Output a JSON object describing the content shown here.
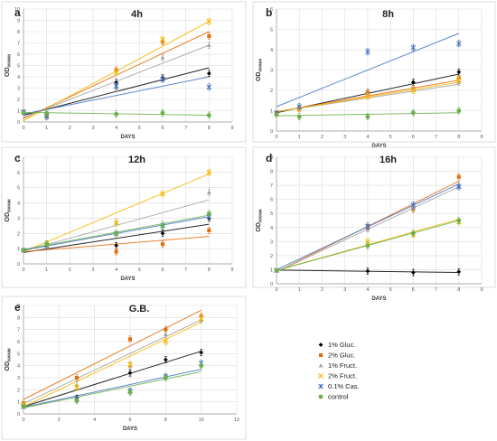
{
  "figure": {
    "series_style": [
      {
        "name": "1% Gluc.",
        "color": "#000000",
        "marker": "diamond"
      },
      {
        "name": "2% Gluc.",
        "color": "#e46c0a",
        "marker": "square"
      },
      {
        "name": "1% Fruct.",
        "color": "#a0a0a0",
        "marker": "triangle"
      },
      {
        "name": "2% Fruct.",
        "color": "#f5b800",
        "marker": "x"
      },
      {
        "name": "0.1% Cas.",
        "color": "#4472c4",
        "marker": "star"
      },
      {
        "name": "control",
        "color": "#6ab04c",
        "marker": "circle"
      }
    ]
  },
  "chart_data": [
    {
      "id": "a",
      "type": "scatter",
      "letter": "a",
      "title": "4h",
      "xlabel": "DAYS",
      "ylabel_main": "OD",
      "ylabel_sub": "600NM",
      "xlim": [
        0,
        9
      ],
      "ylim": [
        0,
        10
      ],
      "xticks": [
        0,
        1,
        2,
        3,
        4,
        5,
        6,
        7,
        8,
        9
      ],
      "yticks": [
        0,
        1,
        2,
        3,
        4,
        5,
        6,
        7,
        8,
        9,
        10
      ],
      "grid": true,
      "series": [
        {
          "name": "1% Gluc.",
          "x": [
            0,
            1,
            4,
            6,
            8
          ],
          "y": [
            0.9,
            0.6,
            3.5,
            3.9,
            4.3
          ]
        },
        {
          "name": "2% Gluc.",
          "x": [
            0,
            1,
            4,
            6,
            8
          ],
          "y": [
            0.9,
            0.6,
            4.6,
            7.1,
            7.6
          ]
        },
        {
          "name": "1% Fruct.",
          "x": [
            0,
            1,
            4,
            6,
            8
          ],
          "y": [
            0.9,
            0.5,
            3.0,
            5.7,
            6.8
          ]
        },
        {
          "name": "2% Fruct.",
          "x": [
            0,
            1,
            4,
            6,
            8
          ],
          "y": [
            0.9,
            0.6,
            4.4,
            7.3,
            8.9
          ]
        },
        {
          "name": "0.1% Cas.",
          "x": [
            0,
            1,
            4,
            6,
            8
          ],
          "y": [
            0.9,
            0.5,
            3.2,
            3.8,
            3.1
          ]
        },
        {
          "name": "control",
          "x": [
            0,
            1,
            4,
            6,
            8
          ],
          "y": [
            0.8,
            0.8,
            0.7,
            0.8,
            0.6
          ]
        }
      ],
      "trend": [
        {
          "name": "1% Gluc.",
          "y0": 0.6,
          "y1": 4.8
        },
        {
          "name": "2% Gluc.",
          "y0": 0.3,
          "y1": 8.0
        },
        {
          "name": "1% Fruct.",
          "y0": 0.4,
          "y1": 6.8
        },
        {
          "name": "2% Fruct.",
          "y0": 0.1,
          "y1": 8.9
        },
        {
          "name": "0.1% Cas.",
          "y0": 0.7,
          "y1": 4.0
        },
        {
          "name": "control",
          "y0": 0.85,
          "y1": 0.6
        }
      ]
    },
    {
      "id": "b",
      "type": "scatter",
      "letter": "b",
      "title": "8h",
      "xlabel": "DAYS",
      "ylabel_main": "OD",
      "ylabel_sub": "600NM",
      "xlim": [
        0,
        9
      ],
      "ylim": [
        0,
        6
      ],
      "xticks": [
        0,
        1,
        2,
        3,
        4,
        5,
        6,
        7,
        8,
        9
      ],
      "yticks": [
        0,
        1,
        2,
        3,
        4,
        5,
        6
      ],
      "grid": true,
      "series": [
        {
          "name": "1% Gluc.",
          "x": [
            0,
            1,
            4,
            6,
            8
          ],
          "y": [
            0.9,
            1.1,
            1.9,
            2.4,
            2.9
          ]
        },
        {
          "name": "2% Gluc.",
          "x": [
            0,
            1,
            4,
            6,
            8
          ],
          "y": [
            0.9,
            1.1,
            1.9,
            2.1,
            2.6
          ]
        },
        {
          "name": "1% Fruct.",
          "x": [
            0,
            1,
            4,
            6,
            8
          ],
          "y": [
            0.9,
            1.1,
            1.8,
            2.1,
            2.4
          ]
        },
        {
          "name": "2% Fruct.",
          "x": [
            0,
            1,
            4,
            6,
            8
          ],
          "y": [
            0.9,
            1.1,
            1.7,
            2.0,
            2.5
          ]
        },
        {
          "name": "0.1% Cas.",
          "x": [
            0,
            1,
            4,
            6,
            8
          ],
          "y": [
            0.9,
            1.2,
            3.9,
            4.1,
            4.3
          ]
        },
        {
          "name": "control",
          "x": [
            0,
            1,
            4,
            6,
            8
          ],
          "y": [
            0.8,
            0.7,
            0.7,
            0.9,
            1.0
          ]
        }
      ],
      "trend": [
        {
          "name": "1% Gluc.",
          "y0": 0.9,
          "y1": 2.8
        },
        {
          "name": "2% Gluc.",
          "y0": 0.95,
          "y1": 2.5
        },
        {
          "name": "1% Fruct.",
          "y0": 0.95,
          "y1": 2.3
        },
        {
          "name": "2% Fruct.",
          "y0": 0.95,
          "y1": 2.4
        },
        {
          "name": "0.1% Cas.",
          "y0": 1.2,
          "y1": 4.8
        },
        {
          "name": "control",
          "y0": 0.75,
          "y1": 0.9
        }
      ]
    },
    {
      "id": "c",
      "type": "scatter",
      "letter": "c",
      "title": "12h",
      "xlabel": "DAYS",
      "ylabel_main": "OD",
      "ylabel_sub": "600NM",
      "xlim": [
        0,
        9
      ],
      "ylim": [
        0,
        7
      ],
      "xticks": [
        0,
        1,
        2,
        3,
        4,
        5,
        6,
        7,
        8,
        9
      ],
      "yticks": [
        0,
        1,
        2,
        3,
        4,
        5,
        6,
        7
      ],
      "grid": true,
      "series": [
        {
          "name": "1% Gluc.",
          "x": [
            0,
            1,
            4,
            6,
            8
          ],
          "y": [
            0.9,
            1.2,
            1.2,
            2.0,
            3.0
          ]
        },
        {
          "name": "2% Gluc.",
          "x": [
            0,
            1,
            4,
            6,
            8
          ],
          "y": [
            0.9,
            1.3,
            0.8,
            1.3,
            2.2
          ]
        },
        {
          "name": "1% Fruct.",
          "x": [
            0,
            1,
            4,
            6,
            8
          ],
          "y": [
            0.9,
            1.3,
            2.7,
            2.6,
            4.7
          ]
        },
        {
          "name": "2% Fruct.",
          "x": [
            0,
            1,
            4,
            6,
            8
          ],
          "y": [
            0.9,
            1.3,
            2.7,
            4.6,
            6.0
          ]
        },
        {
          "name": "0.1% Cas.",
          "x": [
            0,
            1,
            4,
            6,
            8
          ],
          "y": [
            0.9,
            1.2,
            2.0,
            2.5,
            3.1
          ]
        },
        {
          "name": "control",
          "x": [
            0,
            1,
            4,
            6,
            8
          ],
          "y": [
            0.9,
            1.3,
            2.0,
            2.5,
            3.3
          ]
        }
      ],
      "trend": [
        {
          "name": "1% Gluc.",
          "y0": 0.75,
          "y1": 2.6
        },
        {
          "name": "2% Gluc.",
          "y0": 0.8,
          "y1": 1.8
        },
        {
          "name": "1% Fruct.",
          "y0": 0.85,
          "y1": 4.2
        },
        {
          "name": "2% Fruct.",
          "y0": 0.8,
          "y1": 5.9
        },
        {
          "name": "0.1% Cas.",
          "y0": 0.9,
          "y1": 3.1
        },
        {
          "name": "control",
          "y0": 0.95,
          "y1": 3.2
        }
      ]
    },
    {
      "id": "d",
      "type": "scatter",
      "letter": "d",
      "title": "16h",
      "xlabel": "DAYS",
      "ylabel_main": "OD",
      "ylabel_sub": "600NM",
      "xlim": [
        0,
        9
      ],
      "ylim": [
        0,
        9
      ],
      "xticks": [
        0,
        1,
        2,
        3,
        4,
        5,
        6,
        7,
        8,
        9
      ],
      "yticks": [
        0,
        1,
        2,
        3,
        4,
        5,
        6,
        7,
        8,
        9
      ],
      "grid": true,
      "series": [
        {
          "name": "1% Gluc.",
          "x": [
            0,
            4,
            6,
            8
          ],
          "y": [
            0.95,
            0.9,
            0.8,
            0.85
          ]
        },
        {
          "name": "2% Gluc.",
          "x": [
            0,
            4,
            6,
            8
          ],
          "y": [
            0.95,
            4.0,
            5.3,
            7.6
          ]
        },
        {
          "name": "1% Fruct.",
          "x": [
            0,
            4,
            6,
            8
          ],
          "y": [
            0.95,
            3.9,
            5.4,
            7.0
          ]
        },
        {
          "name": "2% Fruct.",
          "x": [
            0,
            4,
            6,
            8
          ],
          "y": [
            0.95,
            3.0,
            3.5,
            4.4
          ]
        },
        {
          "name": "0.1% Cas.",
          "x": [
            0,
            4,
            6,
            8
          ],
          "y": [
            0.95,
            4.1,
            5.6,
            6.9
          ]
        },
        {
          "name": "control",
          "x": [
            0,
            4,
            6,
            8
          ],
          "y": [
            0.95,
            2.7,
            3.6,
            4.5
          ]
        }
      ],
      "trend": [
        {
          "name": "1% Gluc.",
          "y0": 0.97,
          "y1": 0.8
        },
        {
          "name": "2% Gluc.",
          "y0": 0.85,
          "y1": 7.3
        },
        {
          "name": "1% Fruct.",
          "y0": 0.85,
          "y1": 6.9
        },
        {
          "name": "2% Fruct.",
          "y0": 0.95,
          "y1": 4.6
        },
        {
          "name": "0.1% Cas.",
          "y0": 1.0,
          "y1": 7.1
        },
        {
          "name": "control",
          "y0": 0.95,
          "y1": 4.5
        }
      ]
    },
    {
      "id": "e",
      "type": "scatter",
      "letter": "e",
      "title": "G.B.",
      "xlabel": "DAYS",
      "ylabel_main": "OD",
      "ylabel_sub": "600NM",
      "xlim": [
        0,
        12
      ],
      "ylim": [
        0,
        9
      ],
      "xticks": [
        0,
        2,
        4,
        6,
        8,
        10,
        12
      ],
      "yticks": [
        0,
        1,
        2,
        3,
        4,
        5,
        6,
        7,
        8,
        9
      ],
      "grid": true,
      "series": [
        {
          "name": "1% Gluc.",
          "x": [
            0,
            3,
            6,
            8,
            10
          ],
          "y": [
            0.8,
            1.3,
            3.4,
            4.5,
            5.1
          ]
        },
        {
          "name": "2% Gluc.",
          "x": [
            0,
            3,
            6,
            8,
            10
          ],
          "y": [
            0.9,
            3.0,
            6.2,
            7.0,
            8.1
          ]
        },
        {
          "name": "1% Fruct.",
          "x": [
            0,
            3,
            6,
            8,
            10
          ],
          "y": [
            0.8,
            2.4,
            4.0,
            6.6,
            7.8
          ]
        },
        {
          "name": "2% Fruct.",
          "x": [
            0,
            3,
            6,
            8,
            10
          ],
          "y": [
            0.8,
            2.2,
            4.1,
            6.0,
            7.9
          ]
        },
        {
          "name": "0.1% Cas.",
          "x": [
            0,
            3,
            6,
            8,
            10
          ],
          "y": [
            0.6,
            1.2,
            1.9,
            3.1,
            4.2
          ]
        },
        {
          "name": "control",
          "x": [
            0,
            3,
            6,
            8,
            10
          ],
          "y": [
            0.6,
            1.1,
            1.8,
            3.0,
            4.0
          ]
        }
      ],
      "trend": [
        {
          "name": "1% Gluc.",
          "y0": 0.6,
          "y1": 5.2
        },
        {
          "name": "2% Gluc.",
          "y0": 1.2,
          "y1": 8.6
        },
        {
          "name": "1% Fruct.",
          "y0": 0.85,
          "y1": 7.8
        },
        {
          "name": "2% Fruct.",
          "y0": 0.6,
          "y1": 7.6
        },
        {
          "name": "0.1% Cas.",
          "y0": 0.55,
          "y1": 3.7
        },
        {
          "name": "control",
          "y0": 0.5,
          "y1": 3.5
        }
      ]
    }
  ]
}
